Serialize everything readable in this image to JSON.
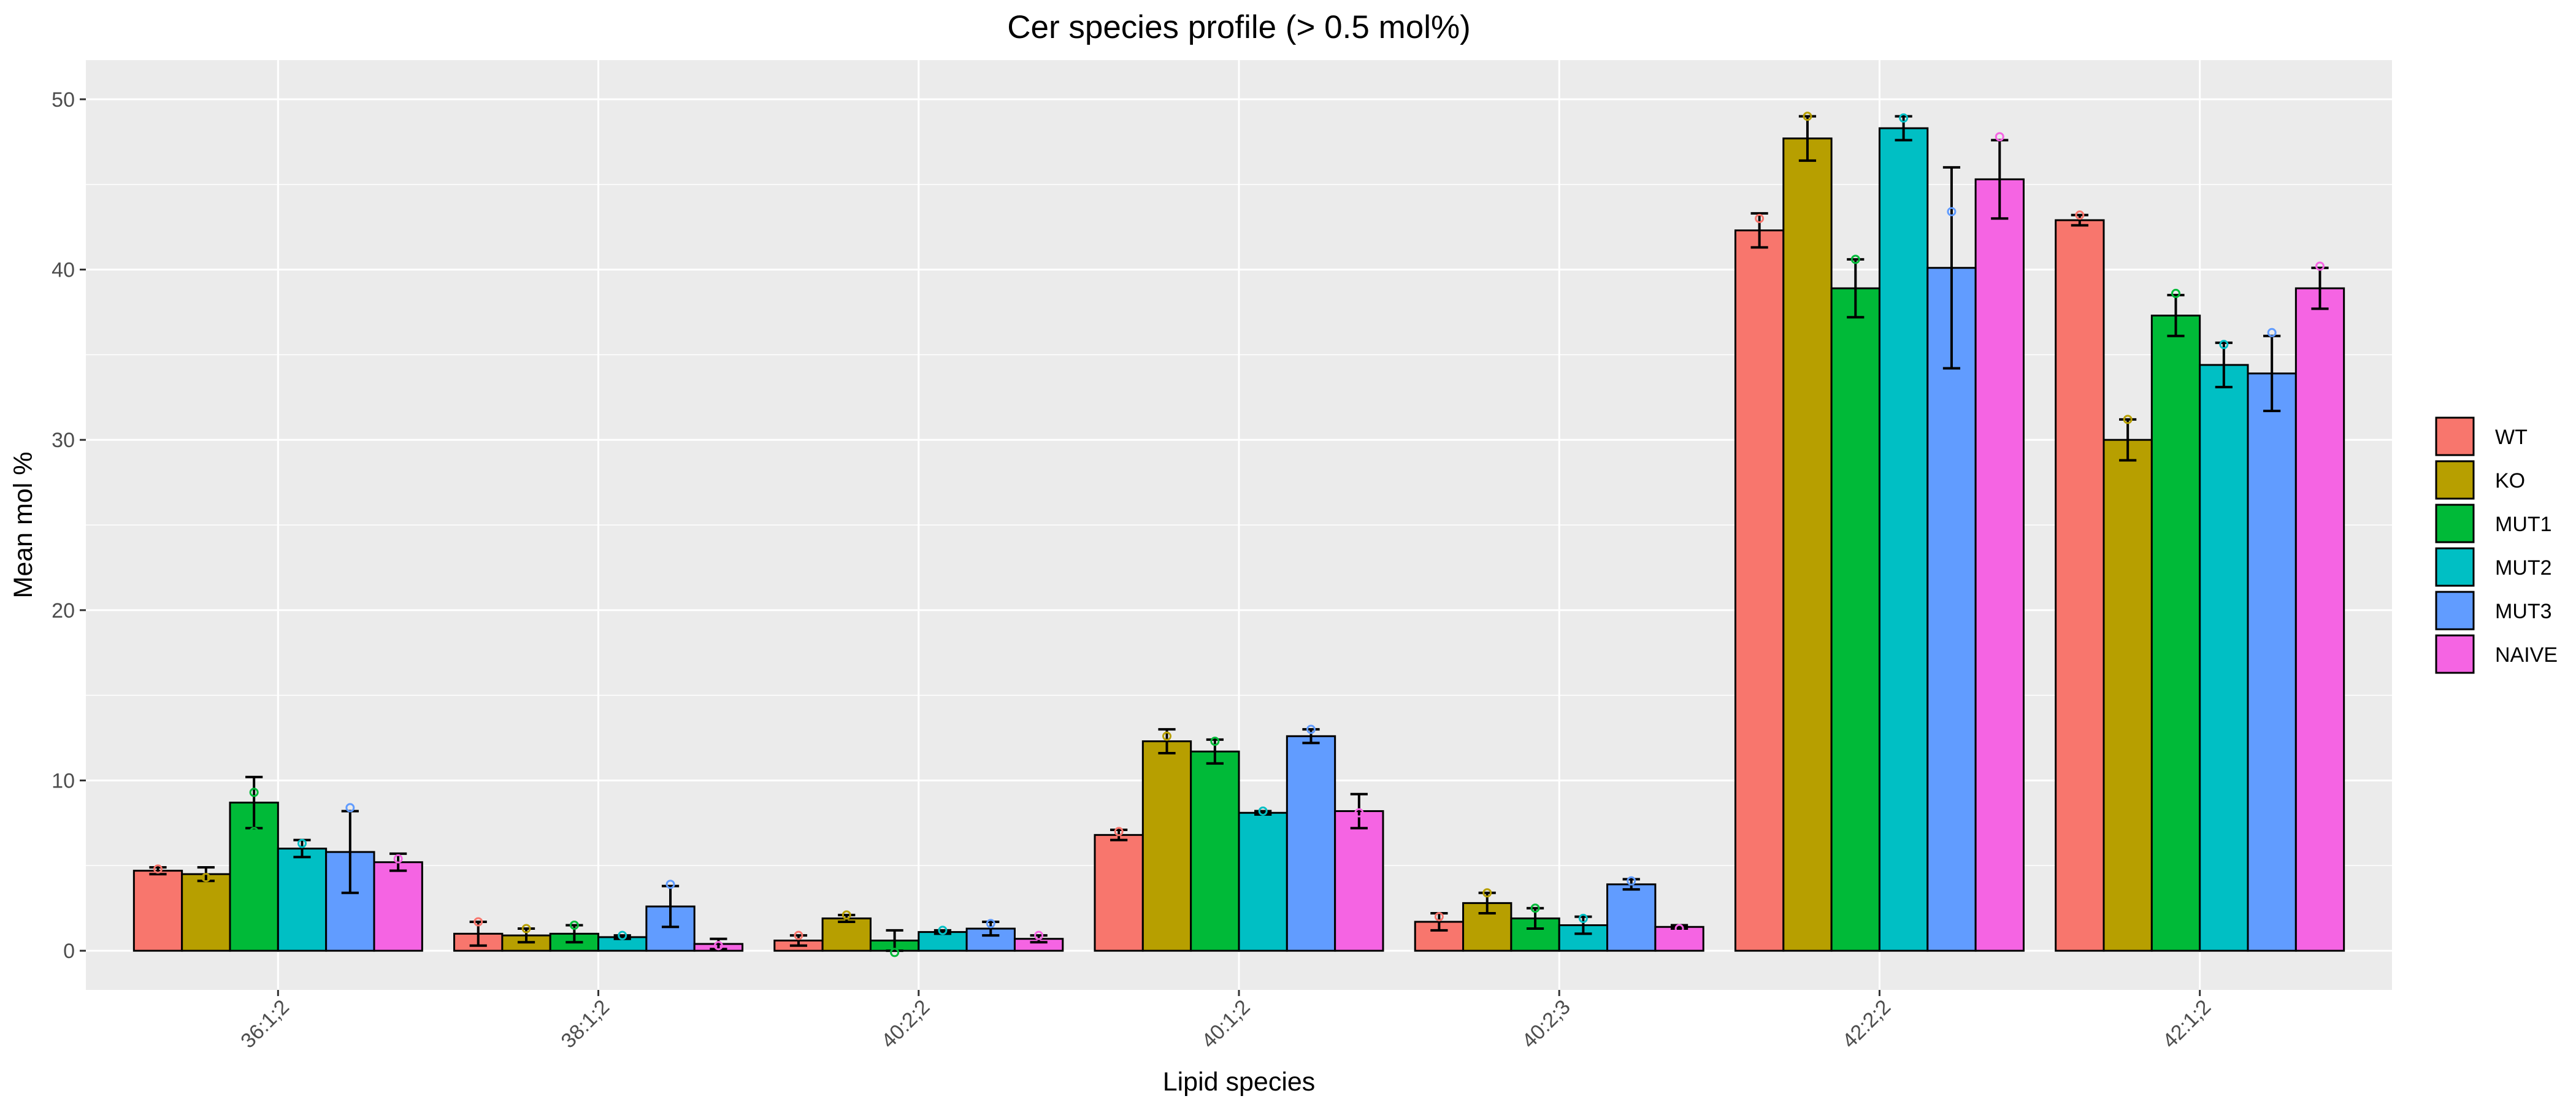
{
  "chart_data": {
    "type": "bar",
    "title": "Cer species profile (> 0.5 mol%)",
    "xlabel": "Lipid species",
    "ylabel": "Mean mol %",
    "categories": [
      "36:1;2",
      "38:1;2",
      "40:2;2",
      "40:1;2",
      "40:2;3",
      "42:2;2",
      "42:1;2"
    ],
    "ylim": [
      -2.3,
      52.3
    ],
    "yticks": [
      0,
      10,
      20,
      30,
      40,
      50
    ],
    "grid": true,
    "legend_position": "right",
    "series": [
      {
        "name": "WT",
        "color": "#F8766D",
        "values": [
          4.7,
          1.0,
          0.6,
          6.8,
          1.7,
          42.3,
          42.9
        ],
        "errors": [
          0.2,
          0.7,
          0.3,
          0.3,
          0.5,
          1.0,
          0.3
        ]
      },
      {
        "name": "KO",
        "color": "#B79F00",
        "values": [
          4.5,
          0.9,
          1.9,
          12.3,
          2.8,
          47.7,
          30.0
        ],
        "errors": [
          0.4,
          0.4,
          0.2,
          0.7,
          0.6,
          1.3,
          1.2
        ]
      },
      {
        "name": "MUT1",
        "color": "#00BA38",
        "values": [
          8.7,
          1.0,
          0.6,
          11.7,
          1.9,
          38.9,
          37.3
        ],
        "errors": [
          1.5,
          0.5,
          0.6,
          0.7,
          0.6,
          1.7,
          1.2
        ]
      },
      {
        "name": "MUT2",
        "color": "#00BFC4",
        "values": [
          6.0,
          0.8,
          1.1,
          8.1,
          1.5,
          48.3,
          34.4
        ],
        "errors": [
          0.5,
          0.1,
          0.1,
          0.1,
          0.5,
          0.7,
          1.3
        ]
      },
      {
        "name": "MUT3",
        "color": "#619CFF",
        "values": [
          5.8,
          2.6,
          1.3,
          12.6,
          3.9,
          40.1,
          33.9
        ],
        "errors": [
          2.4,
          1.2,
          0.4,
          0.4,
          0.3,
          5.9,
          2.2
        ]
      },
      {
        "name": "NAIVE",
        "color": "#F564E3",
        "values": [
          5.2,
          0.4,
          0.7,
          8.2,
          1.4,
          45.3,
          38.9
        ],
        "errors": [
          0.5,
          0.3,
          0.2,
          1.0,
          0.1,
          2.3,
          1.2
        ]
      }
    ],
    "points": [
      [
        [
          4.8
        ],
        [
          4.3
        ],
        [
          9.3,
          7.0
        ],
        [
          6.3
        ],
        [
          8.4
        ],
        [
          5.4
        ]
      ],
      [
        [
          1.7
        ],
        [
          1.3
        ],
        [
          1.5
        ],
        [
          0.9
        ],
        [
          3.9
        ],
        [
          0.3
        ]
      ],
      [
        [
          0.9
        ],
        [
          2.1
        ],
        [
          -0.1
        ],
        [
          1.2
        ],
        [
          1.6
        ],
        [
          0.9
        ]
      ],
      [
        [
          7.0
        ],
        [
          12.6
        ],
        [
          12.3
        ],
        [
          8.2
        ],
        [
          13.0
        ],
        [
          8.1
        ]
      ],
      [
        [
          2.0
        ],
        [
          3.4
        ],
        [
          2.5
        ],
        [
          1.9
        ],
        [
          4.1
        ],
        [
          1.3
        ]
      ],
      [
        [
          43.0
        ],
        [
          49.0
        ],
        [
          40.6
        ],
        [
          48.9
        ],
        [
          43.4,
          33.2
        ],
        [
          47.8
        ]
      ],
      [
        [
          43.2
        ],
        [
          31.2
        ],
        [
          38.6
        ],
        [
          35.6
        ],
        [
          36.3
        ],
        [
          40.2
        ]
      ]
    ]
  }
}
